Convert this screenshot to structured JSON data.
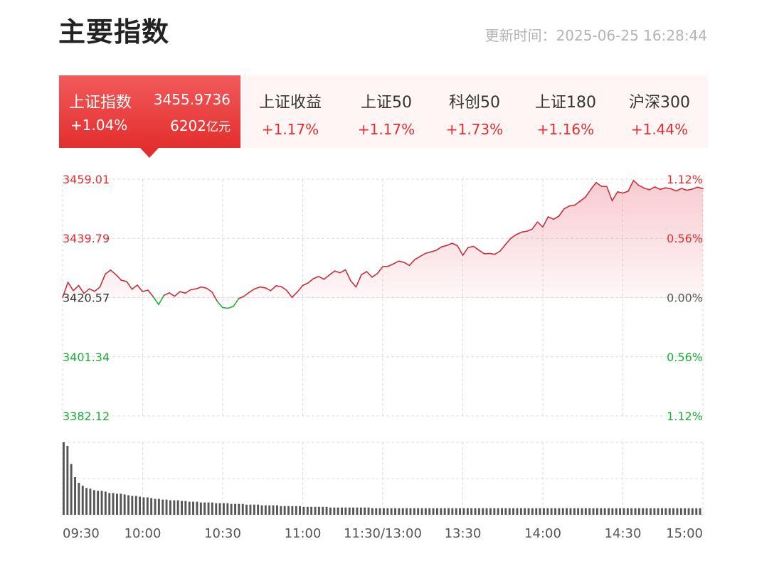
{
  "header": {
    "title": "主要指数",
    "update_time": "更新时间：2025-06-25 16:28:44"
  },
  "active_index": {
    "name": "上证指数",
    "price": "3455.9736",
    "change_pct": "+1.04%",
    "amount": "6202",
    "amount_unit": "亿元"
  },
  "tabs": [
    {
      "name": "上证收益",
      "change_pct": "+1.17%"
    },
    {
      "name": "上证50",
      "change_pct": "+1.17%"
    },
    {
      "name": "科创50",
      "change_pct": "+1.73%"
    },
    {
      "name": "上证180",
      "change_pct": "+1.16%"
    },
    {
      "name": "沪深300",
      "change_pct": "+1.44%"
    }
  ],
  "colors": {
    "up": "#e32e2e",
    "down": "#1fae3a",
    "neutral": "#333333",
    "line": "#c8303c",
    "volume": "#555555"
  },
  "chart_data": {
    "type": "line",
    "base": 3420.57,
    "y_ticks": [
      "3459.01",
      "3439.79",
      "3420.57",
      "3401.34",
      "3382.12"
    ],
    "pct_ticks": [
      "1.12%",
      "0.56%",
      "0.00%",
      "0.56%",
      "1.12%"
    ],
    "ylim": [
      3382.12,
      3459.01
    ],
    "x_labels": [
      "09:30",
      "10:00",
      "10:30",
      "11:00",
      "11:30/13:00",
      "13:30",
      "14:00",
      "14:30",
      "15:00"
    ],
    "total_minutes": 240,
    "grid": true,
    "price_series": [
      [
        0,
        3420.6
      ],
      [
        2,
        3425.5
      ],
      [
        4,
        3422.8
      ],
      [
        6,
        3424.5
      ],
      [
        8,
        3421.9
      ],
      [
        10,
        3423.4
      ],
      [
        12,
        3422.6
      ],
      [
        14,
        3424.0
      ],
      [
        16,
        3428.2
      ],
      [
        18,
        3429.5
      ],
      [
        20,
        3428.0
      ],
      [
        22,
        3426.2
      ],
      [
        24,
        3425.8
      ],
      [
        26,
        3423.3
      ],
      [
        28,
        3424.6
      ],
      [
        30,
        3422.5
      ],
      [
        32,
        3423.0
      ],
      [
        34,
        3420.8
      ],
      [
        36,
        3418.3
      ],
      [
        38,
        3421.3
      ],
      [
        40,
        3422.1
      ],
      [
        42,
        3421.0
      ],
      [
        44,
        3422.5
      ],
      [
        46,
        3422.0
      ],
      [
        48,
        3423.1
      ],
      [
        50,
        3423.4
      ],
      [
        52,
        3424.0
      ],
      [
        54,
        3423.6
      ],
      [
        56,
        3422.4
      ],
      [
        58,
        3419.3
      ],
      [
        60,
        3417.3
      ],
      [
        62,
        3417.1
      ],
      [
        64,
        3417.7
      ],
      [
        66,
        3420.2
      ],
      [
        68,
        3421.0
      ],
      [
        70,
        3422.3
      ],
      [
        72,
        3423.4
      ],
      [
        74,
        3424.0
      ],
      [
        76,
        3423.7
      ],
      [
        78,
        3422.8
      ],
      [
        80,
        3424.4
      ],
      [
        82,
        3424.1
      ],
      [
        84,
        3422.9
      ],
      [
        86,
        3420.6
      ],
      [
        88,
        3422.4
      ],
      [
        90,
        3424.5
      ],
      [
        92,
        3425.3
      ],
      [
        94,
        3426.7
      ],
      [
        96,
        3427.4
      ],
      [
        98,
        3426.5
      ],
      [
        100,
        3427.9
      ],
      [
        102,
        3429.2
      ],
      [
        104,
        3428.6
      ],
      [
        106,
        3429.6
      ],
      [
        108,
        3426.0
      ],
      [
        110,
        3424.0
      ],
      [
        112,
        3428.0
      ],
      [
        114,
        3429.0
      ],
      [
        116,
        3427.2
      ],
      [
        118,
        3428.4
      ],
      [
        120,
        3430.6
      ],
      [
        122,
        3430.7
      ],
      [
        124,
        3431.5
      ],
      [
        126,
        3432.4
      ],
      [
        128,
        3432.0
      ],
      [
        130,
        3431.0
      ],
      [
        132,
        3432.9
      ],
      [
        134,
        3433.9
      ],
      [
        136,
        3434.9
      ],
      [
        138,
        3435.4
      ],
      [
        140,
        3435.9
      ],
      [
        142,
        3437.0
      ],
      [
        144,
        3437.5
      ],
      [
        146,
        3438.2
      ],
      [
        148,
        3437.4
      ],
      [
        150,
        3434.3
      ],
      [
        152,
        3436.8
      ],
      [
        154,
        3437.2
      ],
      [
        156,
        3436.0
      ],
      [
        158,
        3434.8
      ],
      [
        160,
        3434.9
      ],
      [
        162,
        3434.6
      ],
      [
        164,
        3435.7
      ],
      [
        166,
        3437.8
      ],
      [
        168,
        3439.8
      ],
      [
        170,
        3441.0
      ],
      [
        172,
        3441.8
      ],
      [
        174,
        3442.1
      ],
      [
        176,
        3442.8
      ],
      [
        178,
        3445.1
      ],
      [
        180,
        3443.5
      ],
      [
        182,
        3446.8
      ],
      [
        184,
        3446.0
      ],
      [
        186,
        3447.0
      ],
      [
        188,
        3449.4
      ],
      [
        190,
        3450.3
      ],
      [
        192,
        3450.6
      ],
      [
        194,
        3451.9
      ],
      [
        196,
        3453.2
      ],
      [
        198,
        3455.7
      ],
      [
        200,
        3457.9
      ],
      [
        202,
        3456.7
      ],
      [
        204,
        3456.6
      ],
      [
        206,
        3452.0
      ],
      [
        208,
        3454.9
      ],
      [
        210,
        3454.5
      ],
      [
        212,
        3455.1
      ],
      [
        214,
        3458.6
      ],
      [
        216,
        3457.0
      ],
      [
        218,
        3456.1
      ],
      [
        220,
        3455.6
      ],
      [
        222,
        3456.5
      ],
      [
        224,
        3455.7
      ],
      [
        226,
        3456.2
      ],
      [
        228,
        3455.9
      ],
      [
        230,
        3455.2
      ],
      [
        232,
        3456.0
      ],
      [
        234,
        3455.4
      ],
      [
        236,
        3455.8
      ],
      [
        238,
        3456.4
      ],
      [
        240,
        3455.97
      ]
    ],
    "volume_series": [
      100,
      95,
      70,
      52,
      44,
      40,
      37,
      36,
      34,
      33,
      33,
      32,
      30,
      30,
      29,
      29,
      28,
      27,
      26,
      26,
      25,
      24,
      24,
      23,
      22,
      22,
      21,
      21,
      20,
      20,
      20,
      19,
      19,
      18,
      18,
      18,
      17,
      17,
      17,
      17,
      16,
      16,
      16,
      16,
      15,
      15,
      15,
      15,
      14,
      14,
      14,
      14,
      13,
      13,
      13,
      13,
      13,
      12,
      12,
      12,
      12,
      12,
      12,
      11,
      11,
      11,
      11,
      11,
      11,
      11,
      10,
      10,
      10,
      10,
      10,
      10,
      10,
      10,
      10,
      10,
      10,
      9,
      9,
      9,
      9,
      9,
      9,
      9,
      9,
      9,
      9,
      9,
      9,
      9,
      9,
      9,
      9,
      9,
      9,
      9,
      9,
      9,
      9,
      9,
      9,
      9,
      9,
      9,
      9,
      9,
      9,
      9,
      9,
      9,
      9,
      9,
      9,
      9,
      9,
      9,
      9,
      9,
      9,
      9,
      9,
      9,
      9,
      9,
      9,
      9,
      9,
      9,
      9,
      9,
      9,
      9,
      9,
      9,
      9,
      9,
      9,
      9,
      9,
      9,
      9,
      9,
      9,
      9,
      9,
      9,
      9,
      9,
      9,
      9,
      9,
      9,
      9,
      9,
      9,
      9,
      9,
      9,
      9,
      9,
      9,
      9,
      9,
      9
    ]
  }
}
